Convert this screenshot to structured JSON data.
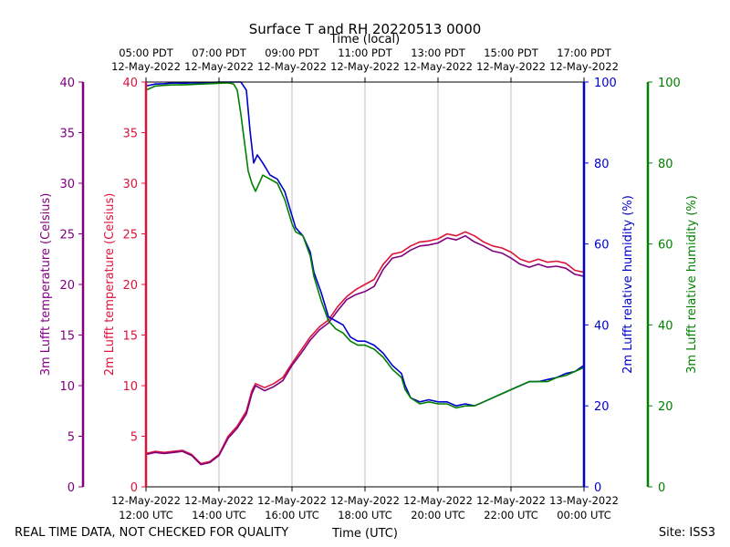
{
  "chart_data": {
    "type": "line",
    "title": "Surface T and RH 20220513 0000",
    "xlabel_bottom": "Time (UTC)",
    "xlabel_top": "Time (local)",
    "footer_left": "REAL TIME DATA, NOT CHECKED FOR QUALITY",
    "footer_right": "Site: ISS3",
    "x_range_hours": [
      12,
      24
    ],
    "bottom_ticks": [
      {
        "h": 12,
        "l1": "12-May-2022",
        "l2": "12:00 UTC"
      },
      {
        "h": 14,
        "l1": "12-May-2022",
        "l2": "14:00 UTC"
      },
      {
        "h": 16,
        "l1": "12-May-2022",
        "l2": "16:00 UTC"
      },
      {
        "h": 18,
        "l1": "12-May-2022",
        "l2": "18:00 UTC"
      },
      {
        "h": 20,
        "l1": "12-May-2022",
        "l2": "20:00 UTC"
      },
      {
        "h": 22,
        "l1": "12-May-2022",
        "l2": "22:00 UTC"
      },
      {
        "h": 24,
        "l1": "13-May-2022",
        "l2": "00:00 UTC"
      }
    ],
    "top_ticks": [
      {
        "h": 12,
        "l1": "05:00 PDT",
        "l2": "12-May-2022"
      },
      {
        "h": 14,
        "l1": "07:00 PDT",
        "l2": "12-May-2022"
      },
      {
        "h": 16,
        "l1": "09:00 PDT",
        "l2": "12-May-2022"
      },
      {
        "h": 18,
        "l1": "11:00 PDT",
        "l2": "12-May-2022"
      },
      {
        "h": 20,
        "l1": "13:00 PDT",
        "l2": "12-May-2022"
      },
      {
        "h": 22,
        "l1": "15:00 PDT",
        "l2": "12-May-2022"
      },
      {
        "h": 24,
        "l1": "17:00 PDT",
        "l2": "12-May-2022"
      }
    ],
    "axes": {
      "temp3m": {
        "label": "3m Lufft temperature (Celsius)",
        "range": [
          0,
          40
        ],
        "ticks": [
          0,
          5,
          10,
          15,
          20,
          25,
          30,
          35,
          40
        ],
        "color": "#800080"
      },
      "temp2m": {
        "label": "2m Lufft temperature (Celsius)",
        "range": [
          0,
          40
        ],
        "ticks": [
          0,
          5,
          10,
          15,
          20,
          25,
          30,
          35,
          40
        ],
        "color": "#dc143c"
      },
      "rh2m": {
        "label": "2m Lufft relative humidity (%)",
        "range": [
          0,
          100
        ],
        "ticks": [
          0,
          20,
          40,
          60,
          80,
          100
        ],
        "color": "#0000cd"
      },
      "rh3m": {
        "label": "3m Lufft relative humidity (%)",
        "range": [
          0,
          100
        ],
        "ticks": [
          0,
          20,
          40,
          60,
          80,
          100
        ],
        "color": "#008000"
      }
    },
    "series": [
      {
        "name": "2m temperature",
        "axis": "temp2m",
        "color": "#dc143c",
        "x": [
          12.0,
          12.25,
          12.5,
          12.75,
          13.0,
          13.25,
          13.5,
          13.75,
          14.0,
          14.25,
          14.5,
          14.75,
          14.9,
          15.0,
          15.25,
          15.5,
          15.75,
          16.0,
          16.25,
          16.5,
          16.75,
          17.0,
          17.25,
          17.5,
          17.75,
          18.0,
          18.25,
          18.5,
          18.75,
          19.0,
          19.25,
          19.5,
          19.75,
          20.0,
          20.25,
          20.5,
          20.75,
          21.0,
          21.25,
          21.5,
          21.75,
          22.0,
          22.25,
          22.5,
          22.75,
          23.0,
          23.25,
          23.5,
          23.75,
          24.0
        ],
        "y": [
          3.3,
          3.5,
          3.4,
          3.5,
          3.6,
          3.2,
          2.3,
          2.5,
          3.2,
          5.0,
          6.0,
          7.5,
          9.5,
          10.2,
          9.8,
          10.2,
          10.8,
          12.2,
          13.5,
          14.8,
          15.8,
          16.5,
          17.8,
          18.8,
          19.5,
          20.0,
          20.5,
          22.0,
          23.0,
          23.2,
          23.8,
          24.2,
          24.3,
          24.5,
          25.0,
          24.8,
          25.2,
          24.8,
          24.2,
          23.8,
          23.6,
          23.2,
          22.5,
          22.2,
          22.5,
          22.2,
          22.3,
          22.1,
          21.4,
          21.2
        ]
      },
      {
        "name": "3m temperature",
        "axis": "temp3m",
        "color": "#800080",
        "x": [
          12.0,
          12.25,
          12.5,
          12.75,
          13.0,
          13.25,
          13.5,
          13.75,
          14.0,
          14.25,
          14.5,
          14.75,
          14.9,
          15.0,
          15.25,
          15.5,
          15.75,
          16.0,
          16.25,
          16.5,
          16.75,
          17.0,
          17.25,
          17.5,
          17.75,
          18.0,
          18.25,
          18.5,
          18.75,
          19.0,
          19.25,
          19.5,
          19.75,
          20.0,
          20.25,
          20.5,
          20.75,
          21.0,
          21.25,
          21.5,
          21.75,
          22.0,
          22.25,
          22.5,
          22.75,
          23.0,
          23.25,
          23.5,
          23.75,
          24.0
        ],
        "y": [
          3.2,
          3.4,
          3.3,
          3.4,
          3.5,
          3.1,
          2.2,
          2.4,
          3.1,
          4.8,
          5.8,
          7.2,
          9.2,
          10.0,
          9.5,
          9.9,
          10.5,
          12.0,
          13.2,
          14.5,
          15.5,
          16.2,
          17.4,
          18.5,
          19.0,
          19.3,
          19.8,
          21.5,
          22.6,
          22.8,
          23.4,
          23.8,
          23.9,
          24.1,
          24.6,
          24.4,
          24.8,
          24.2,
          23.8,
          23.3,
          23.1,
          22.6,
          22.0,
          21.7,
          22.0,
          21.7,
          21.8,
          21.6,
          21.0,
          20.8
        ]
      },
      {
        "name": "2m relative humidity",
        "axis": "rh2m",
        "color": "#0000cd",
        "x": [
          12.0,
          12.25,
          12.5,
          12.75,
          13.0,
          13.25,
          13.5,
          13.75,
          14.0,
          14.25,
          14.5,
          14.6,
          14.75,
          14.85,
          14.95,
          15.05,
          15.2,
          15.4,
          15.6,
          15.8,
          16.0,
          16.1,
          16.3,
          16.5,
          16.6,
          16.8,
          17.0,
          17.2,
          17.4,
          17.6,
          17.8,
          18.0,
          18.25,
          18.5,
          18.75,
          19.0,
          19.1,
          19.25,
          19.5,
          19.75,
          20.0,
          20.25,
          20.5,
          20.75,
          21.0,
          21.25,
          21.5,
          21.75,
          22.0,
          22.25,
          22.5,
          22.75,
          23.0,
          23.25,
          23.5,
          23.75,
          24.0
        ],
        "y": [
          99.0,
          99.5,
          99.6,
          99.8,
          99.7,
          99.8,
          99.8,
          99.9,
          100.0,
          100.0,
          100.0,
          100.0,
          98.0,
          88.0,
          80.0,
          82.0,
          80.0,
          77.0,
          76.0,
          73.0,
          67.0,
          64.0,
          62.0,
          58.0,
          53.0,
          48.0,
          42.0,
          41.0,
          40.0,
          37.0,
          36.0,
          36.0,
          35.0,
          33.0,
          30.0,
          28.0,
          25.0,
          22.0,
          21.0,
          21.5,
          21.0,
          21.0,
          20.0,
          20.5,
          20.0,
          21.0,
          22.0,
          23.0,
          24.0,
          25.0,
          26.0,
          26.0,
          26.5,
          27.0,
          28.0,
          28.5,
          30.0
        ]
      },
      {
        "name": "3m relative humidity",
        "axis": "rh3m",
        "color": "#008000",
        "x": [
          12.0,
          12.25,
          12.5,
          12.75,
          13.0,
          13.25,
          13.5,
          13.75,
          14.0,
          14.25,
          14.4,
          14.5,
          14.6,
          14.7,
          14.8,
          14.9,
          15.0,
          15.2,
          15.4,
          15.6,
          15.8,
          16.0,
          16.1,
          16.3,
          16.5,
          16.6,
          16.8,
          17.0,
          17.2,
          17.4,
          17.6,
          17.8,
          18.0,
          18.25,
          18.5,
          18.75,
          19.0,
          19.1,
          19.25,
          19.5,
          19.75,
          20.0,
          20.25,
          20.5,
          20.75,
          21.0,
          21.25,
          21.5,
          21.75,
          22.0,
          22.25,
          22.5,
          22.75,
          23.0,
          23.25,
          23.5,
          23.75,
          24.0
        ],
        "y": [
          98.0,
          99.0,
          99.2,
          99.3,
          99.3,
          99.4,
          99.5,
          99.6,
          99.7,
          99.8,
          99.5,
          98.0,
          92.0,
          85.0,
          78.0,
          75.0,
          73.0,
          77.0,
          76.0,
          75.0,
          71.0,
          65.0,
          63.0,
          62.0,
          57.0,
          52.0,
          46.0,
          41.0,
          39.0,
          38.0,
          36.0,
          35.0,
          35.0,
          34.0,
          32.0,
          29.0,
          27.0,
          24.0,
          22.0,
          20.5,
          21.0,
          20.5,
          20.5,
          19.5,
          20.0,
          20.0,
          21.0,
          22.0,
          23.0,
          24.0,
          25.0,
          26.0,
          26.0,
          26.0,
          27.0,
          27.5,
          28.5,
          29.5
        ]
      }
    ]
  }
}
